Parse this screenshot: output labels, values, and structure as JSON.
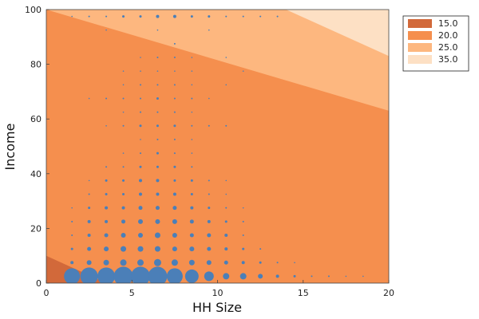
{
  "chart_data": {
    "type": "scatter",
    "xlabel": "HH Size",
    "ylabel": "Income",
    "xlim": [
      0,
      20
    ],
    "ylim": [
      0,
      100
    ],
    "xticks": [
      "0",
      "5",
      "10",
      "15",
      "20"
    ],
    "yticks": [
      "0",
      "20",
      "40",
      "60",
      "80",
      "100"
    ],
    "grid": false,
    "legend_position": "top-right",
    "contour_levels": [
      {
        "label": "15.0",
        "color": "#d2693a"
      },
      {
        "label": "20.0",
        "color": "#f58f4e"
      },
      {
        "label": "25.0",
        "color": "#fdb77f"
      },
      {
        "label": "35.0",
        "color": "#fde0c4"
      }
    ],
    "region_boundaries": [
      {
        "level": "15.0",
        "line": [
          [
            0,
            10
          ],
          [
            3.5,
            0
          ]
        ]
      },
      {
        "level": "20.0",
        "line": [
          [
            0,
            100
          ],
          [
            20,
            63
          ]
        ]
      },
      {
        "level": "25.0",
        "line": [
          [
            14,
            100
          ],
          [
            20,
            83
          ]
        ]
      }
    ],
    "marker_color": "#4b7fb8",
    "points": [
      {
        "x": 1.5,
        "y": 2.5,
        "s": 10
      },
      {
        "x": 2.5,
        "y": 2.5,
        "s": 11
      },
      {
        "x": 3.5,
        "y": 2.5,
        "s": 11
      },
      {
        "x": 4.5,
        "y": 2.5,
        "s": 12
      },
      {
        "x": 5.5,
        "y": 2.5,
        "s": 12
      },
      {
        "x": 6.5,
        "y": 2.5,
        "s": 12
      },
      {
        "x": 7.5,
        "y": 2.5,
        "s": 10
      },
      {
        "x": 8.5,
        "y": 2.5,
        "s": 8.5
      },
      {
        "x": 9.5,
        "y": 2.5,
        "s": 6
      },
      {
        "x": 10.5,
        "y": 2.5,
        "s": 4
      },
      {
        "x": 11.5,
        "y": 2.5,
        "s": 4
      },
      {
        "x": 12.5,
        "y": 2.5,
        "s": 3
      },
      {
        "x": 13.5,
        "y": 2.5,
        "s": 2
      },
      {
        "x": 14.5,
        "y": 2.5,
        "s": 1.5
      },
      {
        "x": 15.5,
        "y": 2.5,
        "s": 1
      },
      {
        "x": 16.5,
        "y": 2.5,
        "s": 1
      },
      {
        "x": 17.5,
        "y": 2.5,
        "s": 0.8
      },
      {
        "x": 18.5,
        "y": 2.5,
        "s": 0.8
      },
      {
        "x": 1.5,
        "y": 7.5,
        "s": 2
      },
      {
        "x": 2.5,
        "y": 7.5,
        "s": 3
      },
      {
        "x": 3.5,
        "y": 7.5,
        "s": 3.5
      },
      {
        "x": 4.5,
        "y": 7.5,
        "s": 4
      },
      {
        "x": 5.5,
        "y": 7.5,
        "s": 4
      },
      {
        "x": 6.5,
        "y": 7.5,
        "s": 4.5
      },
      {
        "x": 7.5,
        "y": 7.5,
        "s": 4
      },
      {
        "x": 8.5,
        "y": 7.5,
        "s": 3.5
      },
      {
        "x": 9.5,
        "y": 7.5,
        "s": 3
      },
      {
        "x": 10.5,
        "y": 7.5,
        "s": 2.5
      },
      {
        "x": 11.5,
        "y": 7.5,
        "s": 2
      },
      {
        "x": 12.5,
        "y": 7.5,
        "s": 1.5
      },
      {
        "x": 13.5,
        "y": 7.5,
        "s": 1
      },
      {
        "x": 14.5,
        "y": 7.5,
        "s": 0.8
      },
      {
        "x": 1.5,
        "y": 12.5,
        "s": 1.5
      },
      {
        "x": 2.5,
        "y": 12.5,
        "s": 2.5
      },
      {
        "x": 3.5,
        "y": 12.5,
        "s": 3
      },
      {
        "x": 4.5,
        "y": 12.5,
        "s": 3.5
      },
      {
        "x": 5.5,
        "y": 12.5,
        "s": 3.5
      },
      {
        "x": 6.5,
        "y": 12.5,
        "s": 3.5
      },
      {
        "x": 7.5,
        "y": 12.5,
        "s": 3
      },
      {
        "x": 8.5,
        "y": 12.5,
        "s": 3
      },
      {
        "x": 9.5,
        "y": 12.5,
        "s": 2.5
      },
      {
        "x": 10.5,
        "y": 12.5,
        "s": 2
      },
      {
        "x": 11.5,
        "y": 12.5,
        "s": 1.5
      },
      {
        "x": 12.5,
        "y": 12.5,
        "s": 1
      },
      {
        "x": 1.5,
        "y": 17.5,
        "s": 1
      },
      {
        "x": 2.5,
        "y": 17.5,
        "s": 2
      },
      {
        "x": 3.5,
        "y": 17.5,
        "s": 2.5
      },
      {
        "x": 4.5,
        "y": 17.5,
        "s": 3
      },
      {
        "x": 5.5,
        "y": 17.5,
        "s": 3
      },
      {
        "x": 6.5,
        "y": 17.5,
        "s": 3.5
      },
      {
        "x": 7.5,
        "y": 17.5,
        "s": 3
      },
      {
        "x": 8.5,
        "y": 17.5,
        "s": 2.5
      },
      {
        "x": 9.5,
        "y": 17.5,
        "s": 2.5
      },
      {
        "x": 10.5,
        "y": 17.5,
        "s": 2
      },
      {
        "x": 11.5,
        "y": 17.5,
        "s": 1
      },
      {
        "x": 1.5,
        "y": 22.5,
        "s": 1
      },
      {
        "x": 2.5,
        "y": 22.5,
        "s": 2
      },
      {
        "x": 3.5,
        "y": 22.5,
        "s": 2
      },
      {
        "x": 4.5,
        "y": 22.5,
        "s": 2.5
      },
      {
        "x": 5.5,
        "y": 22.5,
        "s": 3
      },
      {
        "x": 6.5,
        "y": 22.5,
        "s": 3
      },
      {
        "x": 7.5,
        "y": 22.5,
        "s": 3
      },
      {
        "x": 8.5,
        "y": 22.5,
        "s": 2.5
      },
      {
        "x": 9.5,
        "y": 22.5,
        "s": 2
      },
      {
        "x": 10.5,
        "y": 22.5,
        "s": 1.5
      },
      {
        "x": 11.5,
        "y": 22.5,
        "s": 1
      },
      {
        "x": 1.5,
        "y": 27.5,
        "s": 0.8
      },
      {
        "x": 2.5,
        "y": 27.5,
        "s": 1.5
      },
      {
        "x": 3.5,
        "y": 27.5,
        "s": 2
      },
      {
        "x": 4.5,
        "y": 27.5,
        "s": 2
      },
      {
        "x": 5.5,
        "y": 27.5,
        "s": 2.5
      },
      {
        "x": 6.5,
        "y": 27.5,
        "s": 2.5
      },
      {
        "x": 7.5,
        "y": 27.5,
        "s": 2.5
      },
      {
        "x": 8.5,
        "y": 27.5,
        "s": 2
      },
      {
        "x": 9.5,
        "y": 27.5,
        "s": 1.5
      },
      {
        "x": 10.5,
        "y": 27.5,
        "s": 1
      },
      {
        "x": 11.5,
        "y": 27.5,
        "s": 0.8
      },
      {
        "x": 2.5,
        "y": 32.5,
        "s": 1
      },
      {
        "x": 3.5,
        "y": 32.5,
        "s": 1.5
      },
      {
        "x": 4.5,
        "y": 32.5,
        "s": 1.5
      },
      {
        "x": 5.5,
        "y": 32.5,
        "s": 2
      },
      {
        "x": 6.5,
        "y": 32.5,
        "s": 2
      },
      {
        "x": 7.5,
        "y": 32.5,
        "s": 2
      },
      {
        "x": 8.5,
        "y": 32.5,
        "s": 1.5
      },
      {
        "x": 9.5,
        "y": 32.5,
        "s": 1
      },
      {
        "x": 10.5,
        "y": 32.5,
        "s": 0.8
      },
      {
        "x": 2.5,
        "y": 37.5,
        "s": 0.8
      },
      {
        "x": 3.5,
        "y": 37.5,
        "s": 1.5
      },
      {
        "x": 4.5,
        "y": 37.5,
        "s": 1.5
      },
      {
        "x": 5.5,
        "y": 37.5,
        "s": 2
      },
      {
        "x": 6.5,
        "y": 37.5,
        "s": 2
      },
      {
        "x": 7.5,
        "y": 37.5,
        "s": 1.5
      },
      {
        "x": 8.5,
        "y": 37.5,
        "s": 1.5
      },
      {
        "x": 9.5,
        "y": 37.5,
        "s": 1
      },
      {
        "x": 10.5,
        "y": 37.5,
        "s": 0.8
      },
      {
        "x": 3.5,
        "y": 42.5,
        "s": 1
      },
      {
        "x": 4.5,
        "y": 42.5,
        "s": 1
      },
      {
        "x": 5.5,
        "y": 42.5,
        "s": 1.5
      },
      {
        "x": 6.5,
        "y": 42.5,
        "s": 1.5
      },
      {
        "x": 7.5,
        "y": 42.5,
        "s": 1.5
      },
      {
        "x": 8.5,
        "y": 42.5,
        "s": 1
      },
      {
        "x": 4.5,
        "y": 47.5,
        "s": 0.8
      },
      {
        "x": 5.5,
        "y": 47.5,
        "s": 1
      },
      {
        "x": 6.5,
        "y": 47.5,
        "s": 1.5
      },
      {
        "x": 7.5,
        "y": 47.5,
        "s": 1
      },
      {
        "x": 8.5,
        "y": 47.5,
        "s": 0.8
      },
      {
        "x": 5.5,
        "y": 52.5,
        "s": 0.8
      },
      {
        "x": 6.5,
        "y": 52.5,
        "s": 1
      },
      {
        "x": 7.5,
        "y": 52.5,
        "s": 1
      },
      {
        "x": 8.5,
        "y": 52.5,
        "s": 0.8
      },
      {
        "x": 3.5,
        "y": 57.5,
        "s": 0.8
      },
      {
        "x": 4.5,
        "y": 57.5,
        "s": 1
      },
      {
        "x": 5.5,
        "y": 57.5,
        "s": 1.5
      },
      {
        "x": 6.5,
        "y": 57.5,
        "s": 1.5
      },
      {
        "x": 7.5,
        "y": 57.5,
        "s": 1.5
      },
      {
        "x": 8.5,
        "y": 57.5,
        "s": 1
      },
      {
        "x": 9.5,
        "y": 57.5,
        "s": 1
      },
      {
        "x": 10.5,
        "y": 57.5,
        "s": 1
      },
      {
        "x": 4.5,
        "y": 62.5,
        "s": 0.8
      },
      {
        "x": 5.5,
        "y": 62.5,
        "s": 1
      },
      {
        "x": 6.5,
        "y": 62.5,
        "s": 1
      },
      {
        "x": 7.5,
        "y": 62.5,
        "s": 1
      },
      {
        "x": 8.5,
        "y": 62.5,
        "s": 0.8
      },
      {
        "x": 2.5,
        "y": 67.5,
        "s": 0.8
      },
      {
        "x": 3.5,
        "y": 67.5,
        "s": 1
      },
      {
        "x": 4.5,
        "y": 67.5,
        "s": 1
      },
      {
        "x": 5.5,
        "y": 67.5,
        "s": 1
      },
      {
        "x": 6.5,
        "y": 67.5,
        "s": 1.5
      },
      {
        "x": 7.5,
        "y": 67.5,
        "s": 1
      },
      {
        "x": 8.5,
        "y": 67.5,
        "s": 1
      },
      {
        "x": 9.5,
        "y": 67.5,
        "s": 0.8
      },
      {
        "x": 4.5,
        "y": 72.5,
        "s": 0.8
      },
      {
        "x": 5.5,
        "y": 72.5,
        "s": 1
      },
      {
        "x": 6.5,
        "y": 72.5,
        "s": 1
      },
      {
        "x": 7.5,
        "y": 72.5,
        "s": 1
      },
      {
        "x": 8.5,
        "y": 72.5,
        "s": 0.8
      },
      {
        "x": 10.5,
        "y": 72.5,
        "s": 0.8
      },
      {
        "x": 4.5,
        "y": 77.5,
        "s": 0.8
      },
      {
        "x": 5.5,
        "y": 77.5,
        "s": 0.8
      },
      {
        "x": 6.5,
        "y": 77.5,
        "s": 0.8
      },
      {
        "x": 7.5,
        "y": 77.5,
        "s": 0.8
      },
      {
        "x": 8.5,
        "y": 77.5,
        "s": 0.8
      },
      {
        "x": 11.5,
        "y": 77.5,
        "s": 0.8
      },
      {
        "x": 5.5,
        "y": 82.5,
        "s": 0.8
      },
      {
        "x": 6.5,
        "y": 82.5,
        "s": 1
      },
      {
        "x": 7.5,
        "y": 82.5,
        "s": 1
      },
      {
        "x": 8.5,
        "y": 82.5,
        "s": 0.8
      },
      {
        "x": 10.5,
        "y": 82.5,
        "s": 0.8
      },
      {
        "x": 7.5,
        "y": 87.5,
        "s": 1
      },
      {
        "x": 3.5,
        "y": 92.5,
        "s": 0.8
      },
      {
        "x": 6.5,
        "y": 92.5,
        "s": 0.8
      },
      {
        "x": 9.5,
        "y": 92.5,
        "s": 0.8
      },
      {
        "x": 1.5,
        "y": 97.5,
        "s": 0.8
      },
      {
        "x": 2.5,
        "y": 97.5,
        "s": 1
      },
      {
        "x": 3.5,
        "y": 97.5,
        "s": 1
      },
      {
        "x": 4.5,
        "y": 97.5,
        "s": 1.5
      },
      {
        "x": 5.5,
        "y": 97.5,
        "s": 1.5
      },
      {
        "x": 6.5,
        "y": 97.5,
        "s": 2
      },
      {
        "x": 7.5,
        "y": 97.5,
        "s": 2
      },
      {
        "x": 8.5,
        "y": 97.5,
        "s": 1.5
      },
      {
        "x": 9.5,
        "y": 97.5,
        "s": 1.5
      },
      {
        "x": 10.5,
        "y": 97.5,
        "s": 1
      },
      {
        "x": 11.5,
        "y": 97.5,
        "s": 1
      },
      {
        "x": 12.5,
        "y": 97.5,
        "s": 1
      },
      {
        "x": 13.5,
        "y": 97.5,
        "s": 1
      }
    ]
  }
}
